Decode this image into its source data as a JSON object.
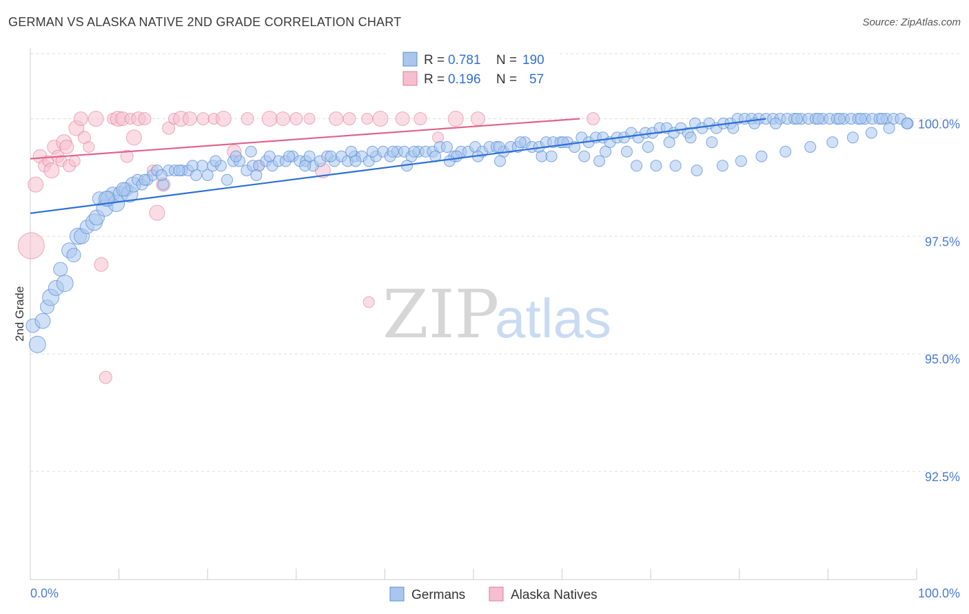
{
  "header": {
    "title": "GERMAN VS ALASKA NATIVE 2ND GRADE CORRELATION CHART",
    "source": "Source: ZipAtlas.com"
  },
  "watermark": {
    "zip": "ZIP",
    "atlas": "atlas"
  },
  "legend": {
    "germans": {
      "r_label": "R =",
      "r_value": "0.781",
      "n_label": "N =",
      "n_value": "190"
    },
    "alaska": {
      "r_label": "R =",
      "r_value": "0.196",
      "n_label": "N =",
      "n_value": "57"
    }
  },
  "bottom_legend": {
    "germans": "Germans",
    "alaska": "Alaska Natives"
  },
  "chart_data": {
    "type": "scatter",
    "title": "GERMAN VS ALASKA NATIVE 2ND GRADE CORRELATION CHART",
    "xlabel": "",
    "ylabel": "2nd Grade",
    "xlim": [
      0,
      100
    ],
    "ylim": [
      90.2,
      101.5
    ],
    "x_tick_labels": [
      "0.0%",
      "100.0%"
    ],
    "y_ticks": [
      92.5,
      95.0,
      97.5,
      100.0
    ],
    "y_tick_labels": [
      "92.5%",
      "95.0%",
      "97.5%",
      "100.0%"
    ],
    "colors": {
      "germans": "#5b8fd6",
      "germans_fill": "#a9c6ee",
      "alaska": "#e07a9a",
      "alaska_fill": "#f5bfd0",
      "tick": "#4a7bd4"
    },
    "series": [
      {
        "name": "Germans",
        "r": 0.781,
        "n": 190,
        "trend": {
          "x": [
            0,
            83
          ],
          "y": [
            97.99,
            100.0
          ]
        },
        "points": [
          [
            0.3,
            95.6
          ],
          [
            0.8,
            95.2
          ],
          [
            1.4,
            95.7
          ],
          [
            1.9,
            96.0
          ],
          [
            2.3,
            96.2
          ],
          [
            2.9,
            96.4
          ],
          [
            3.4,
            96.8
          ],
          [
            3.9,
            96.5
          ],
          [
            4.4,
            97.2
          ],
          [
            4.9,
            97.1
          ],
          [
            5.4,
            97.5
          ],
          [
            5.8,
            97.5
          ],
          [
            6.4,
            97.7
          ],
          [
            7.2,
            97.8
          ],
          [
            7.5,
            97.9
          ],
          [
            7.8,
            98.3
          ],
          [
            8.4,
            98.1
          ],
          [
            8.8,
            98.3
          ],
          [
            9.3,
            98.4
          ],
          [
            9.7,
            98.2
          ],
          [
            10.2,
            98.4
          ],
          [
            10.8,
            98.5
          ],
          [
            11.2,
            98.4
          ],
          [
            11.6,
            98.6
          ],
          [
            12.1,
            98.7
          ],
          [
            12.6,
            98.6
          ],
          [
            13.2,
            98.7
          ],
          [
            13.8,
            98.8
          ],
          [
            14.3,
            98.9
          ],
          [
            15.0,
            98.6
          ],
          [
            15.6,
            98.9
          ],
          [
            16.3,
            98.9
          ],
          [
            17.1,
            98.9
          ],
          [
            17.8,
            98.9
          ],
          [
            18.7,
            98.8
          ],
          [
            19.4,
            99.0
          ],
          [
            20.0,
            98.8
          ],
          [
            20.6,
            99.0
          ],
          [
            21.5,
            99.0
          ],
          [
            22.2,
            98.7
          ],
          [
            22.9,
            99.1
          ],
          [
            23.6,
            99.1
          ],
          [
            24.4,
            98.9
          ],
          [
            25.1,
            99.0
          ],
          [
            25.8,
            99.0
          ],
          [
            26.6,
            99.1
          ],
          [
            27.3,
            99.0
          ],
          [
            28.0,
            99.1
          ],
          [
            28.8,
            99.1
          ],
          [
            29.6,
            99.2
          ],
          [
            30.4,
            99.1
          ],
          [
            31.1,
            99.1
          ],
          [
            31.9,
            99.0
          ],
          [
            32.7,
            99.1
          ],
          [
            33.5,
            99.2
          ],
          [
            34.3,
            99.1
          ],
          [
            35.1,
            99.2
          ],
          [
            35.8,
            99.1
          ],
          [
            36.6,
            99.2
          ],
          [
            37.4,
            99.2
          ],
          [
            38.2,
            99.1
          ],
          [
            39.0,
            99.2
          ],
          [
            39.8,
            99.3
          ],
          [
            40.6,
            99.2
          ],
          [
            41.4,
            99.3
          ],
          [
            42.2,
            99.3
          ],
          [
            43.0,
            99.2
          ],
          [
            43.8,
            99.3
          ],
          [
            44.6,
            99.3
          ],
          [
            45.4,
            99.3
          ],
          [
            46.2,
            99.4
          ],
          [
            47.0,
            99.4
          ],
          [
            47.8,
            99.2
          ],
          [
            48.6,
            99.3
          ],
          [
            49.4,
            99.3
          ],
          [
            50.2,
            99.4
          ],
          [
            51.0,
            99.3
          ],
          [
            51.8,
            99.4
          ],
          [
            52.6,
            99.4
          ],
          [
            53.4,
            99.3
          ],
          [
            54.2,
            99.4
          ],
          [
            55.0,
            99.4
          ],
          [
            55.8,
            99.5
          ],
          [
            56.6,
            99.4
          ],
          [
            57.4,
            99.4
          ],
          [
            58.2,
            99.5
          ],
          [
            59.0,
            99.5
          ],
          [
            59.8,
            99.5
          ],
          [
            60.6,
            99.5
          ],
          [
            61.4,
            99.4
          ],
          [
            62.2,
            99.6
          ],
          [
            63.0,
            99.5
          ],
          [
            63.8,
            99.6
          ],
          [
            64.6,
            99.6
          ],
          [
            65.4,
            99.5
          ],
          [
            66.2,
            99.6
          ],
          [
            67.0,
            99.6
          ],
          [
            67.8,
            99.7
          ],
          [
            68.6,
            99.6
          ],
          [
            69.4,
            99.7
          ],
          [
            70.2,
            99.7
          ],
          [
            71.0,
            99.8
          ],
          [
            71.8,
            99.8
          ],
          [
            72.6,
            99.7
          ],
          [
            73.4,
            99.8
          ],
          [
            74.2,
            99.7
          ],
          [
            75.0,
            99.9
          ],
          [
            75.8,
            99.8
          ],
          [
            76.6,
            99.9
          ],
          [
            77.4,
            99.8
          ],
          [
            78.2,
            99.9
          ],
          [
            79.0,
            99.9
          ],
          [
            79.8,
            100.0
          ],
          [
            80.6,
            100.0
          ],
          [
            81.4,
            100.0
          ],
          [
            82.2,
            100.0
          ],
          [
            83.0,
            100.0
          ],
          [
            83.8,
            100.0
          ],
          [
            84.6,
            100.0
          ],
          [
            85.4,
            100.0
          ],
          [
            86.2,
            100.0
          ],
          [
            87.0,
            100.0
          ],
          [
            87.8,
            100.0
          ],
          [
            88.6,
            100.0
          ],
          [
            89.4,
            100.0
          ],
          [
            90.2,
            100.0
          ],
          [
            91.0,
            100.0
          ],
          [
            91.8,
            100.0
          ],
          [
            92.6,
            100.0
          ],
          [
            93.4,
            100.0
          ],
          [
            94.2,
            100.0
          ],
          [
            95.0,
            100.0
          ],
          [
            95.8,
            100.0
          ],
          [
            96.6,
            100.0
          ],
          [
            97.4,
            100.0
          ],
          [
            98.2,
            100.0
          ],
          [
            99.0,
            99.9
          ],
          [
            8.6,
            98.3
          ],
          [
            10.5,
            98.5
          ],
          [
            12.9,
            98.7
          ],
          [
            14.8,
            98.8
          ],
          [
            16.8,
            98.9
          ],
          [
            18.3,
            99.0
          ],
          [
            20.9,
            99.1
          ],
          [
            23.2,
            99.2
          ],
          [
            24.9,
            99.3
          ],
          [
            27.0,
            99.2
          ],
          [
            29.2,
            99.2
          ],
          [
            31.5,
            99.2
          ],
          [
            33.9,
            99.2
          ],
          [
            36.2,
            99.3
          ],
          [
            38.6,
            99.3
          ],
          [
            40.9,
            99.3
          ],
          [
            43.3,
            99.3
          ],
          [
            45.7,
            99.2
          ],
          [
            48.1,
            99.2
          ],
          [
            50.5,
            99.2
          ],
          [
            52.9,
            99.4
          ],
          [
            55.3,
            99.5
          ],
          [
            57.7,
            99.2
          ],
          [
            60.1,
            99.5
          ],
          [
            62.5,
            99.2
          ],
          [
            64.9,
            99.3
          ],
          [
            67.3,
            99.3
          ],
          [
            69.7,
            99.4
          ],
          [
            72.1,
            99.5
          ],
          [
            74.5,
            99.6
          ],
          [
            76.9,
            99.5
          ],
          [
            79.3,
            99.8
          ],
          [
            81.7,
            99.9
          ],
          [
            84.1,
            99.9
          ],
          [
            86.5,
            100.0
          ],
          [
            88.9,
            100.0
          ],
          [
            91.3,
            100.0
          ],
          [
            93.7,
            100.0
          ],
          [
            96.1,
            100.0
          ],
          [
            25.5,
            98.8
          ],
          [
            31.0,
            99.0
          ],
          [
            36.7,
            99.1
          ],
          [
            42.5,
            99.0
          ],
          [
            47.3,
            99.1
          ],
          [
            53.0,
            99.1
          ],
          [
            58.8,
            99.2
          ],
          [
            64.2,
            99.1
          ],
          [
            68.4,
            99.0
          ],
          [
            70.6,
            99.0
          ],
          [
            72.8,
            99.0
          ],
          [
            75.2,
            98.9
          ],
          [
            78.1,
            99.0
          ],
          [
            80.2,
            99.1
          ],
          [
            82.5,
            99.2
          ],
          [
            85.2,
            99.3
          ],
          [
            88.0,
            99.4
          ],
          [
            90.5,
            99.5
          ],
          [
            92.8,
            99.6
          ],
          [
            94.9,
            99.7
          ],
          [
            96.9,
            99.8
          ],
          [
            98.9,
            99.9
          ]
        ]
      },
      {
        "name": "Alaska Natives",
        "r": 0.196,
        "n": 57,
        "trend": {
          "x": [
            0,
            62
          ],
          "y": [
            99.15,
            100.0
          ]
        },
        "points": [
          [
            0.1,
            97.3
          ],
          [
            0.6,
            98.6
          ],
          [
            1.1,
            99.2
          ],
          [
            1.6,
            99.0
          ],
          [
            2.0,
            99.1
          ],
          [
            2.4,
            98.9
          ],
          [
            2.7,
            99.4
          ],
          [
            3.1,
            99.2
          ],
          [
            3.5,
            99.1
          ],
          [
            3.8,
            99.5
          ],
          [
            4.1,
            99.4
          ],
          [
            4.4,
            99.0
          ],
          [
            5.0,
            99.1
          ],
          [
            5.2,
            99.8
          ],
          [
            5.7,
            100.0
          ],
          [
            6.1,
            99.6
          ],
          [
            6.6,
            99.4
          ],
          [
            7.4,
            100.0
          ],
          [
            8.0,
            96.9
          ],
          [
            8.5,
            94.5
          ],
          [
            9.3,
            100.0
          ],
          [
            9.9,
            100.0
          ],
          [
            10.4,
            100.0
          ],
          [
            10.9,
            99.2
          ],
          [
            11.3,
            100.0
          ],
          [
            11.7,
            99.6
          ],
          [
            12.2,
            100.0
          ],
          [
            12.9,
            100.0
          ],
          [
            13.8,
            98.9
          ],
          [
            14.3,
            98.0
          ],
          [
            15.0,
            98.6
          ],
          [
            15.6,
            99.8
          ],
          [
            16.2,
            100.0
          ],
          [
            17.0,
            100.0
          ],
          [
            18.0,
            100.0
          ],
          [
            19.5,
            100.0
          ],
          [
            20.7,
            100.0
          ],
          [
            21.8,
            100.0
          ],
          [
            23.0,
            99.3
          ],
          [
            24.5,
            100.0
          ],
          [
            25.8,
            99.0
          ],
          [
            27.0,
            100.0
          ],
          [
            28.5,
            100.0
          ],
          [
            30.0,
            100.0
          ],
          [
            31.5,
            100.0
          ],
          [
            33.0,
            98.9
          ],
          [
            34.5,
            100.0
          ],
          [
            36.0,
            100.0
          ],
          [
            38.0,
            100.0
          ],
          [
            39.5,
            100.0
          ],
          [
            42.0,
            100.0
          ],
          [
            44.0,
            100.0
          ],
          [
            46.0,
            99.6
          ],
          [
            48.0,
            100.0
          ],
          [
            50.5,
            100.0
          ],
          [
            63.5,
            100.0
          ],
          [
            38.2,
            96.1
          ]
        ]
      }
    ]
  }
}
